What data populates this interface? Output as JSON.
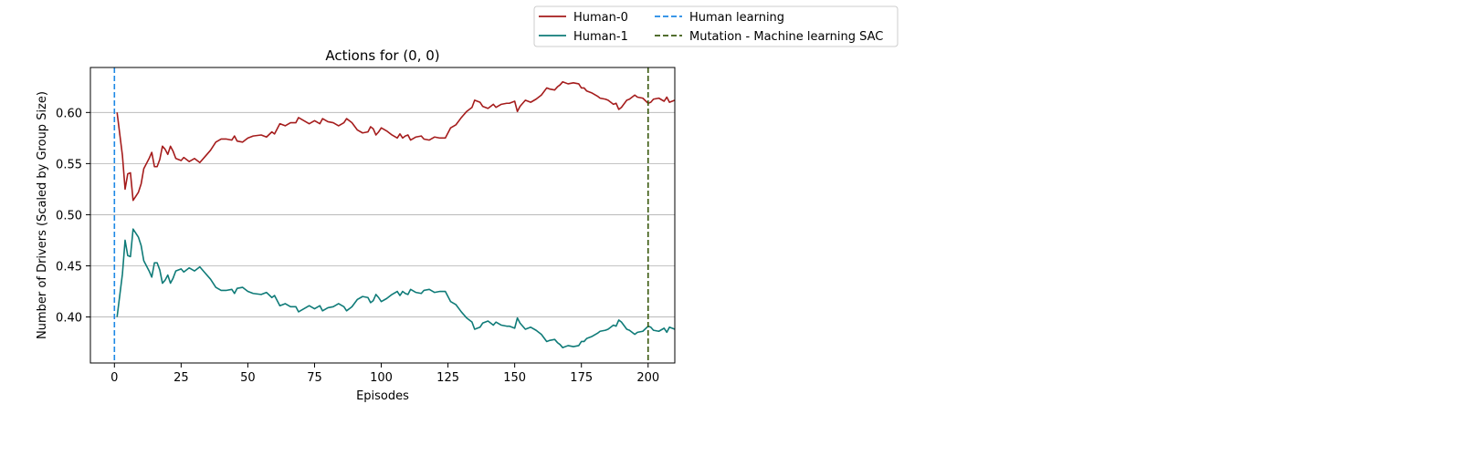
{
  "chart_data": {
    "type": "line",
    "title": "Actions for (0, 0)",
    "xlabel": "Episodes",
    "ylabel": "Number of Drivers (Scaled by Group Size)",
    "xlim": [
      -9,
      210
    ],
    "ylim": [
      0.355,
      0.644
    ],
    "xticks": [
      0,
      25,
      50,
      75,
      100,
      125,
      150,
      175,
      200
    ],
    "yticks": [
      0.4,
      0.45,
      0.5,
      0.55,
      0.6
    ],
    "ytick_labels": [
      "0.40",
      "0.45",
      "0.50",
      "0.55",
      "0.60"
    ],
    "grid": "horizontal",
    "legend_position": "above plot, two columns",
    "series": [
      {
        "name": "Human-0",
        "color": "#a51c1c",
        "points": [
          [
            1,
            0.6
          ],
          [
            3,
            0.558
          ],
          [
            4,
            0.525
          ],
          [
            5,
            0.54
          ],
          [
            6,
            0.541
          ],
          [
            7,
            0.514
          ],
          [
            8,
            0.518
          ],
          [
            9,
            0.522
          ],
          [
            10,
            0.53
          ],
          [
            11,
            0.545
          ],
          [
            13,
            0.555
          ],
          [
            14,
            0.561
          ],
          [
            15,
            0.547
          ],
          [
            16,
            0.547
          ],
          [
            17,
            0.554
          ],
          [
            18,
            0.567
          ],
          [
            19,
            0.564
          ],
          [
            20,
            0.559
          ],
          [
            21,
            0.567
          ],
          [
            22,
            0.562
          ],
          [
            23,
            0.555
          ],
          [
            25,
            0.553
          ],
          [
            26,
            0.556
          ],
          [
            28,
            0.552
          ],
          [
            30,
            0.555
          ],
          [
            32,
            0.551
          ],
          [
            34,
            0.557
          ],
          [
            36,
            0.563
          ],
          [
            38,
            0.571
          ],
          [
            40,
            0.574
          ],
          [
            42,
            0.574
          ],
          [
            44,
            0.573
          ],
          [
            45,
            0.577
          ],
          [
            46,
            0.572
          ],
          [
            48,
            0.571
          ],
          [
            50,
            0.575
          ],
          [
            52,
            0.577
          ],
          [
            55,
            0.578
          ],
          [
            57,
            0.576
          ],
          [
            59,
            0.581
          ],
          [
            60,
            0.579
          ],
          [
            62,
            0.589
          ],
          [
            64,
            0.587
          ],
          [
            66,
            0.59
          ],
          [
            68,
            0.59
          ],
          [
            69,
            0.595
          ],
          [
            71,
            0.592
          ],
          [
            73,
            0.589
          ],
          [
            75,
            0.592
          ],
          [
            77,
            0.589
          ],
          [
            78,
            0.594
          ],
          [
            80,
            0.591
          ],
          [
            82,
            0.59
          ],
          [
            84,
            0.587
          ],
          [
            86,
            0.59
          ],
          [
            87,
            0.594
          ],
          [
            89,
            0.59
          ],
          [
            91,
            0.583
          ],
          [
            93,
            0.58
          ],
          [
            95,
            0.581
          ],
          [
            96,
            0.586
          ],
          [
            97,
            0.584
          ],
          [
            98,
            0.578
          ],
          [
            99,
            0.581
          ],
          [
            100,
            0.585
          ],
          [
            102,
            0.582
          ],
          [
            104,
            0.578
          ],
          [
            106,
            0.575
          ],
          [
            107,
            0.579
          ],
          [
            108,
            0.575
          ],
          [
            109,
            0.577
          ],
          [
            110,
            0.578
          ],
          [
            111,
            0.573
          ],
          [
            113,
            0.576
          ],
          [
            115,
            0.577
          ],
          [
            116,
            0.574
          ],
          [
            118,
            0.573
          ],
          [
            120,
            0.576
          ],
          [
            122,
            0.575
          ],
          [
            124,
            0.575
          ],
          [
            126,
            0.585
          ],
          [
            128,
            0.588
          ],
          [
            130,
            0.595
          ],
          [
            132,
            0.601
          ],
          [
            134,
            0.605
          ],
          [
            135,
            0.612
          ],
          [
            137,
            0.61
          ],
          [
            138,
            0.606
          ],
          [
            140,
            0.604
          ],
          [
            142,
            0.608
          ],
          [
            143,
            0.605
          ],
          [
            145,
            0.608
          ],
          [
            147,
            0.609
          ],
          [
            148,
            0.609
          ],
          [
            150,
            0.611
          ],
          [
            151,
            0.601
          ],
          [
            152,
            0.606
          ],
          [
            154,
            0.612
          ],
          [
            156,
            0.61
          ],
          [
            158,
            0.613
          ],
          [
            160,
            0.617
          ],
          [
            162,
            0.624
          ],
          [
            163,
            0.623
          ],
          [
            165,
            0.622
          ],
          [
            166,
            0.625
          ],
          [
            167,
            0.627
          ],
          [
            168,
            0.63
          ],
          [
            170,
            0.628
          ],
          [
            172,
            0.629
          ],
          [
            174,
            0.628
          ],
          [
            175,
            0.624
          ],
          [
            176,
            0.624
          ],
          [
            177,
            0.621
          ],
          [
            179,
            0.619
          ],
          [
            181,
            0.616
          ],
          [
            182,
            0.614
          ],
          [
            184,
            0.613
          ],
          [
            185,
            0.612
          ],
          [
            187,
            0.608
          ],
          [
            188,
            0.609
          ],
          [
            189,
            0.603
          ],
          [
            190,
            0.605
          ],
          [
            192,
            0.612
          ],
          [
            193,
            0.613
          ],
          [
            195,
            0.617
          ],
          [
            196,
            0.615
          ],
          [
            198,
            0.614
          ],
          [
            200,
            0.609
          ],
          [
            201,
            0.61
          ],
          [
            202,
            0.613
          ],
          [
            204,
            0.614
          ],
          [
            206,
            0.611
          ],
          [
            207,
            0.615
          ],
          [
            208,
            0.61
          ],
          [
            210,
            0.612
          ],
          [
            211,
            0.61
          ],
          [
            212,
            0.61
          ]
        ]
      },
      {
        "name": "Human-1",
        "color": "#0f7b78",
        "points": [
          [
            1,
            0.4
          ],
          [
            3,
            0.442
          ],
          [
            4,
            0.475
          ],
          [
            5,
            0.46
          ],
          [
            6,
            0.459
          ],
          [
            7,
            0.486
          ],
          [
            8,
            0.482
          ],
          [
            9,
            0.478
          ],
          [
            10,
            0.47
          ],
          [
            11,
            0.455
          ],
          [
            13,
            0.445
          ],
          [
            14,
            0.439
          ],
          [
            15,
            0.453
          ],
          [
            16,
            0.453
          ],
          [
            17,
            0.446
          ],
          [
            18,
            0.433
          ],
          [
            19,
            0.436
          ],
          [
            20,
            0.441
          ],
          [
            21,
            0.433
          ],
          [
            22,
            0.438
          ],
          [
            23,
            0.445
          ],
          [
            25,
            0.447
          ],
          [
            26,
            0.444
          ],
          [
            28,
            0.448
          ],
          [
            30,
            0.445
          ],
          [
            32,
            0.449
          ],
          [
            34,
            0.443
          ],
          [
            36,
            0.437
          ],
          [
            38,
            0.429
          ],
          [
            40,
            0.426
          ],
          [
            42,
            0.426
          ],
          [
            44,
            0.427
          ],
          [
            45,
            0.423
          ],
          [
            46,
            0.428
          ],
          [
            48,
            0.429
          ],
          [
            50,
            0.425
          ],
          [
            52,
            0.423
          ],
          [
            55,
            0.422
          ],
          [
            57,
            0.424
          ],
          [
            59,
            0.419
          ],
          [
            60,
            0.421
          ],
          [
            62,
            0.411
          ],
          [
            64,
            0.413
          ],
          [
            66,
            0.41
          ],
          [
            68,
            0.41
          ],
          [
            69,
            0.405
          ],
          [
            71,
            0.408
          ],
          [
            73,
            0.411
          ],
          [
            75,
            0.408
          ],
          [
            77,
            0.411
          ],
          [
            78,
            0.406
          ],
          [
            80,
            0.409
          ],
          [
            82,
            0.41
          ],
          [
            84,
            0.413
          ],
          [
            86,
            0.41
          ],
          [
            87,
            0.406
          ],
          [
            89,
            0.41
          ],
          [
            91,
            0.417
          ],
          [
            93,
            0.42
          ],
          [
            95,
            0.419
          ],
          [
            96,
            0.414
          ],
          [
            97,
            0.416
          ],
          [
            98,
            0.422
          ],
          [
            99,
            0.419
          ],
          [
            100,
            0.415
          ],
          [
            102,
            0.418
          ],
          [
            104,
            0.422
          ],
          [
            106,
            0.425
          ],
          [
            107,
            0.421
          ],
          [
            108,
            0.425
          ],
          [
            109,
            0.423
          ],
          [
            110,
            0.422
          ],
          [
            111,
            0.427
          ],
          [
            113,
            0.424
          ],
          [
            115,
            0.423
          ],
          [
            116,
            0.426
          ],
          [
            118,
            0.427
          ],
          [
            120,
            0.424
          ],
          [
            122,
            0.425
          ],
          [
            124,
            0.425
          ],
          [
            126,
            0.415
          ],
          [
            128,
            0.412
          ],
          [
            130,
            0.405
          ],
          [
            132,
            0.399
          ],
          [
            134,
            0.395
          ],
          [
            135,
            0.388
          ],
          [
            137,
            0.39
          ],
          [
            138,
            0.394
          ],
          [
            140,
            0.396
          ],
          [
            142,
            0.392
          ],
          [
            143,
            0.395
          ],
          [
            145,
            0.392
          ],
          [
            147,
            0.391
          ],
          [
            148,
            0.391
          ],
          [
            150,
            0.389
          ],
          [
            151,
            0.399
          ],
          [
            152,
            0.394
          ],
          [
            154,
            0.388
          ],
          [
            156,
            0.39
          ],
          [
            158,
            0.387
          ],
          [
            160,
            0.383
          ],
          [
            162,
            0.376
          ],
          [
            163,
            0.377
          ],
          [
            165,
            0.378
          ],
          [
            166,
            0.375
          ],
          [
            167,
            0.373
          ],
          [
            168,
            0.37
          ],
          [
            170,
            0.372
          ],
          [
            172,
            0.371
          ],
          [
            174,
            0.372
          ],
          [
            175,
            0.376
          ],
          [
            176,
            0.376
          ],
          [
            177,
            0.379
          ],
          [
            179,
            0.381
          ],
          [
            181,
            0.384
          ],
          [
            182,
            0.386
          ],
          [
            184,
            0.387
          ],
          [
            185,
            0.388
          ],
          [
            187,
            0.392
          ],
          [
            188,
            0.391
          ],
          [
            189,
            0.397
          ],
          [
            190,
            0.395
          ],
          [
            192,
            0.388
          ],
          [
            193,
            0.387
          ],
          [
            195,
            0.383
          ],
          [
            196,
            0.385
          ],
          [
            198,
            0.386
          ],
          [
            200,
            0.391
          ],
          [
            201,
            0.39
          ],
          [
            202,
            0.387
          ],
          [
            204,
            0.386
          ],
          [
            206,
            0.389
          ],
          [
            207,
            0.385
          ],
          [
            208,
            0.39
          ],
          [
            210,
            0.388
          ],
          [
            211,
            0.39
          ],
          [
            212,
            0.39
          ]
        ]
      }
    ],
    "vlines": [
      {
        "name": "Human learning",
        "x": 0,
        "color": "#1e88e5",
        "style": "dashed"
      },
      {
        "name": "Mutation - Machine learning SAC",
        "x": 200,
        "color": "#3a5a10",
        "style": "dashed"
      }
    ]
  }
}
